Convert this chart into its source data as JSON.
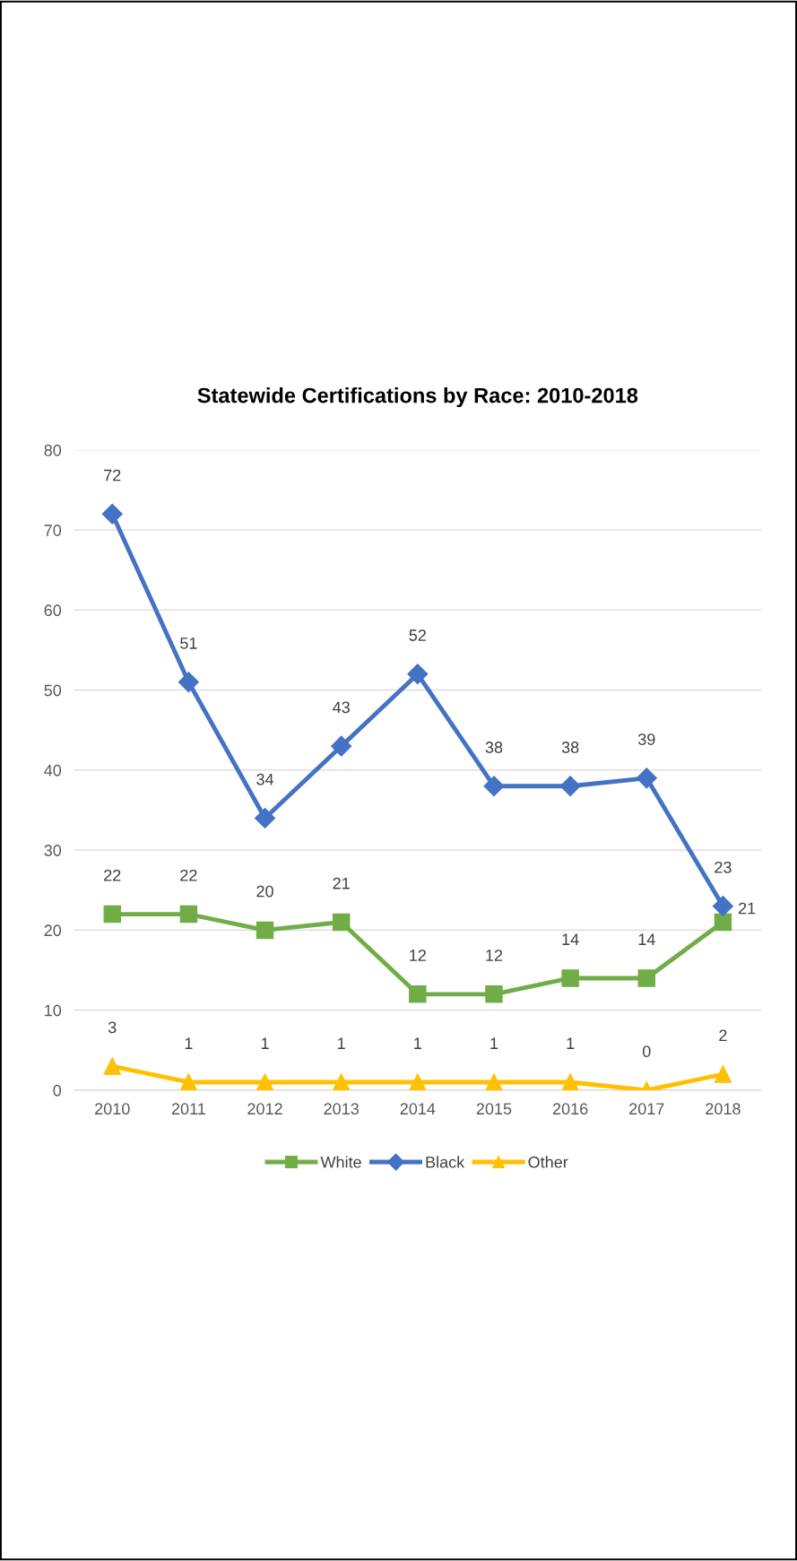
{
  "chart_data": {
    "type": "line",
    "title": "Statewide Certifications by Race: 2010-2018",
    "categories": [
      "2010",
      "2011",
      "2012",
      "2013",
      "2014",
      "2015",
      "2016",
      "2017",
      "2018"
    ],
    "series": [
      {
        "name": "White",
        "color": "#70ad47",
        "marker": "square",
        "values": [
          22,
          22,
          20,
          21,
          12,
          12,
          14,
          14,
          21
        ]
      },
      {
        "name": "Black",
        "color": "#4472c4",
        "marker": "diamond",
        "values": [
          72,
          51,
          34,
          43,
          52,
          38,
          38,
          39,
          23
        ]
      },
      {
        "name": "Other",
        "color": "#ffc000",
        "marker": "triangle",
        "values": [
          3,
          1,
          1,
          1,
          1,
          1,
          1,
          0,
          2
        ]
      }
    ],
    "ylim": [
      0,
      80
    ],
    "yticks": [
      0,
      10,
      20,
      30,
      40,
      50,
      60,
      70,
      80
    ],
    "grid": "y",
    "legend": "bottom",
    "data_labels": true,
    "line_style": "solid"
  }
}
